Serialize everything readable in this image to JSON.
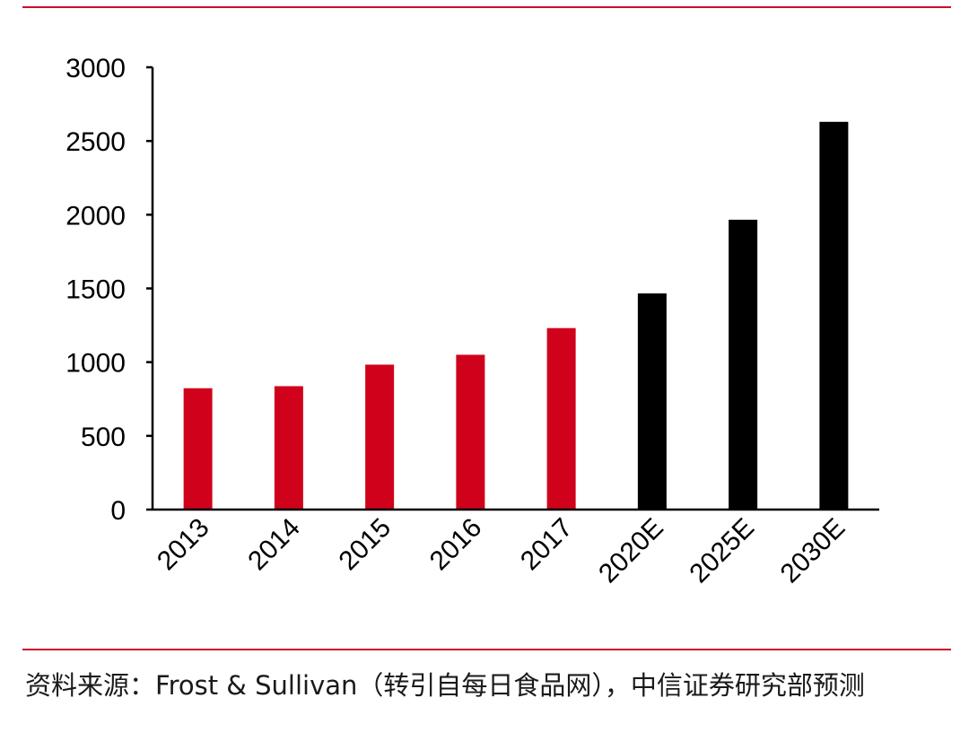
{
  "chart_data": {
    "type": "bar",
    "title": "",
    "xlabel": "",
    "ylabel": "",
    "categories": [
      "2013",
      "2014",
      "2015",
      "2016",
      "2017",
      "2020E",
      "2025E",
      "2030E"
    ],
    "values": [
      823,
      837,
      983,
      1050,
      1231,
      1466,
      1966,
      2630
    ],
    "ylim": [
      0,
      3000
    ],
    "yticks": [
      "0",
      "500",
      "1000",
      "1500",
      "2000",
      "2500",
      "3000"
    ],
    "bar_colors": [
      "#d0021b",
      "#d0021b",
      "#d0021b",
      "#d0021b",
      "#d0021b",
      "#000000",
      "#000000",
      "#000000"
    ],
    "grid": false,
    "legend": "none",
    "x_tick_rotation": "-45deg"
  },
  "colors": {
    "accent": "#c8102e",
    "actual": "#d0021b",
    "estimate": "#000000"
  },
  "source_note": "资料来源：Frost & Sullivan（转引自每日食品网），中信证券研究部预测"
}
